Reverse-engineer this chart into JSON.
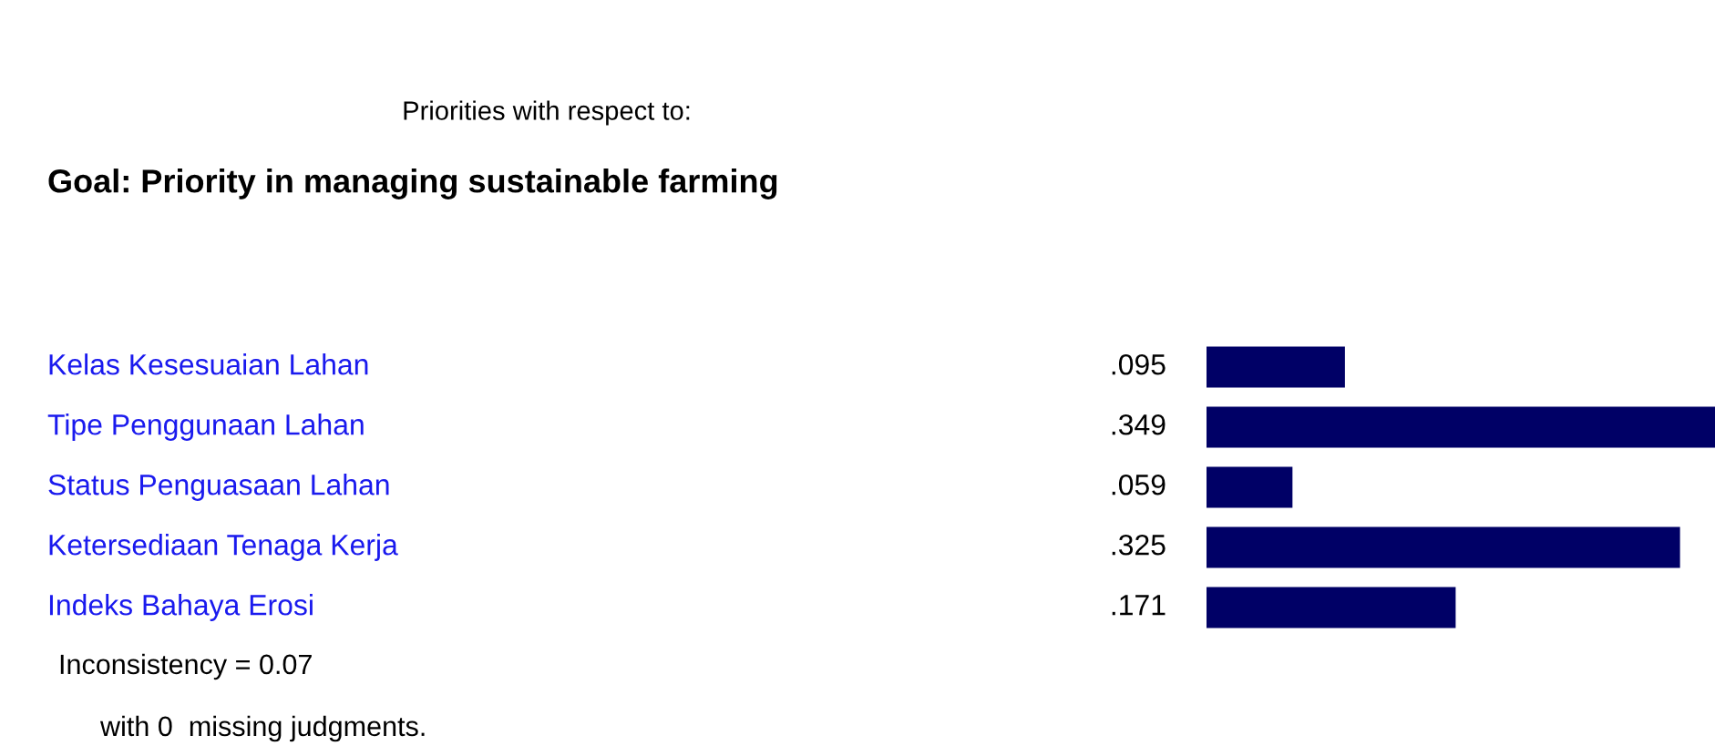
{
  "chart_data": {
    "type": "bar",
    "orientation": "horizontal",
    "title": "Priorities with respect to:",
    "subtitle": "Goal: Priority in managing sustainable farming",
    "categories": [
      "Kelas Kesesuaian Lahan",
      "Tipe Penggunaan Lahan",
      "Status Penguasaan Lahan",
      "Ketersediaan Tenaga Kerja",
      "Indeks Bahaya Erosi"
    ],
    "values": [
      0.095,
      0.349,
      0.059,
      0.325,
      0.171
    ],
    "value_labels": [
      ".095",
      ".349",
      ".059",
      ".325",
      ".171"
    ],
    "color": "#000066",
    "xlim": [
      0,
      0.349
    ],
    "annotations": [
      "Inconsistency = 0.07",
      "with 0  missing judgments."
    ]
  }
}
